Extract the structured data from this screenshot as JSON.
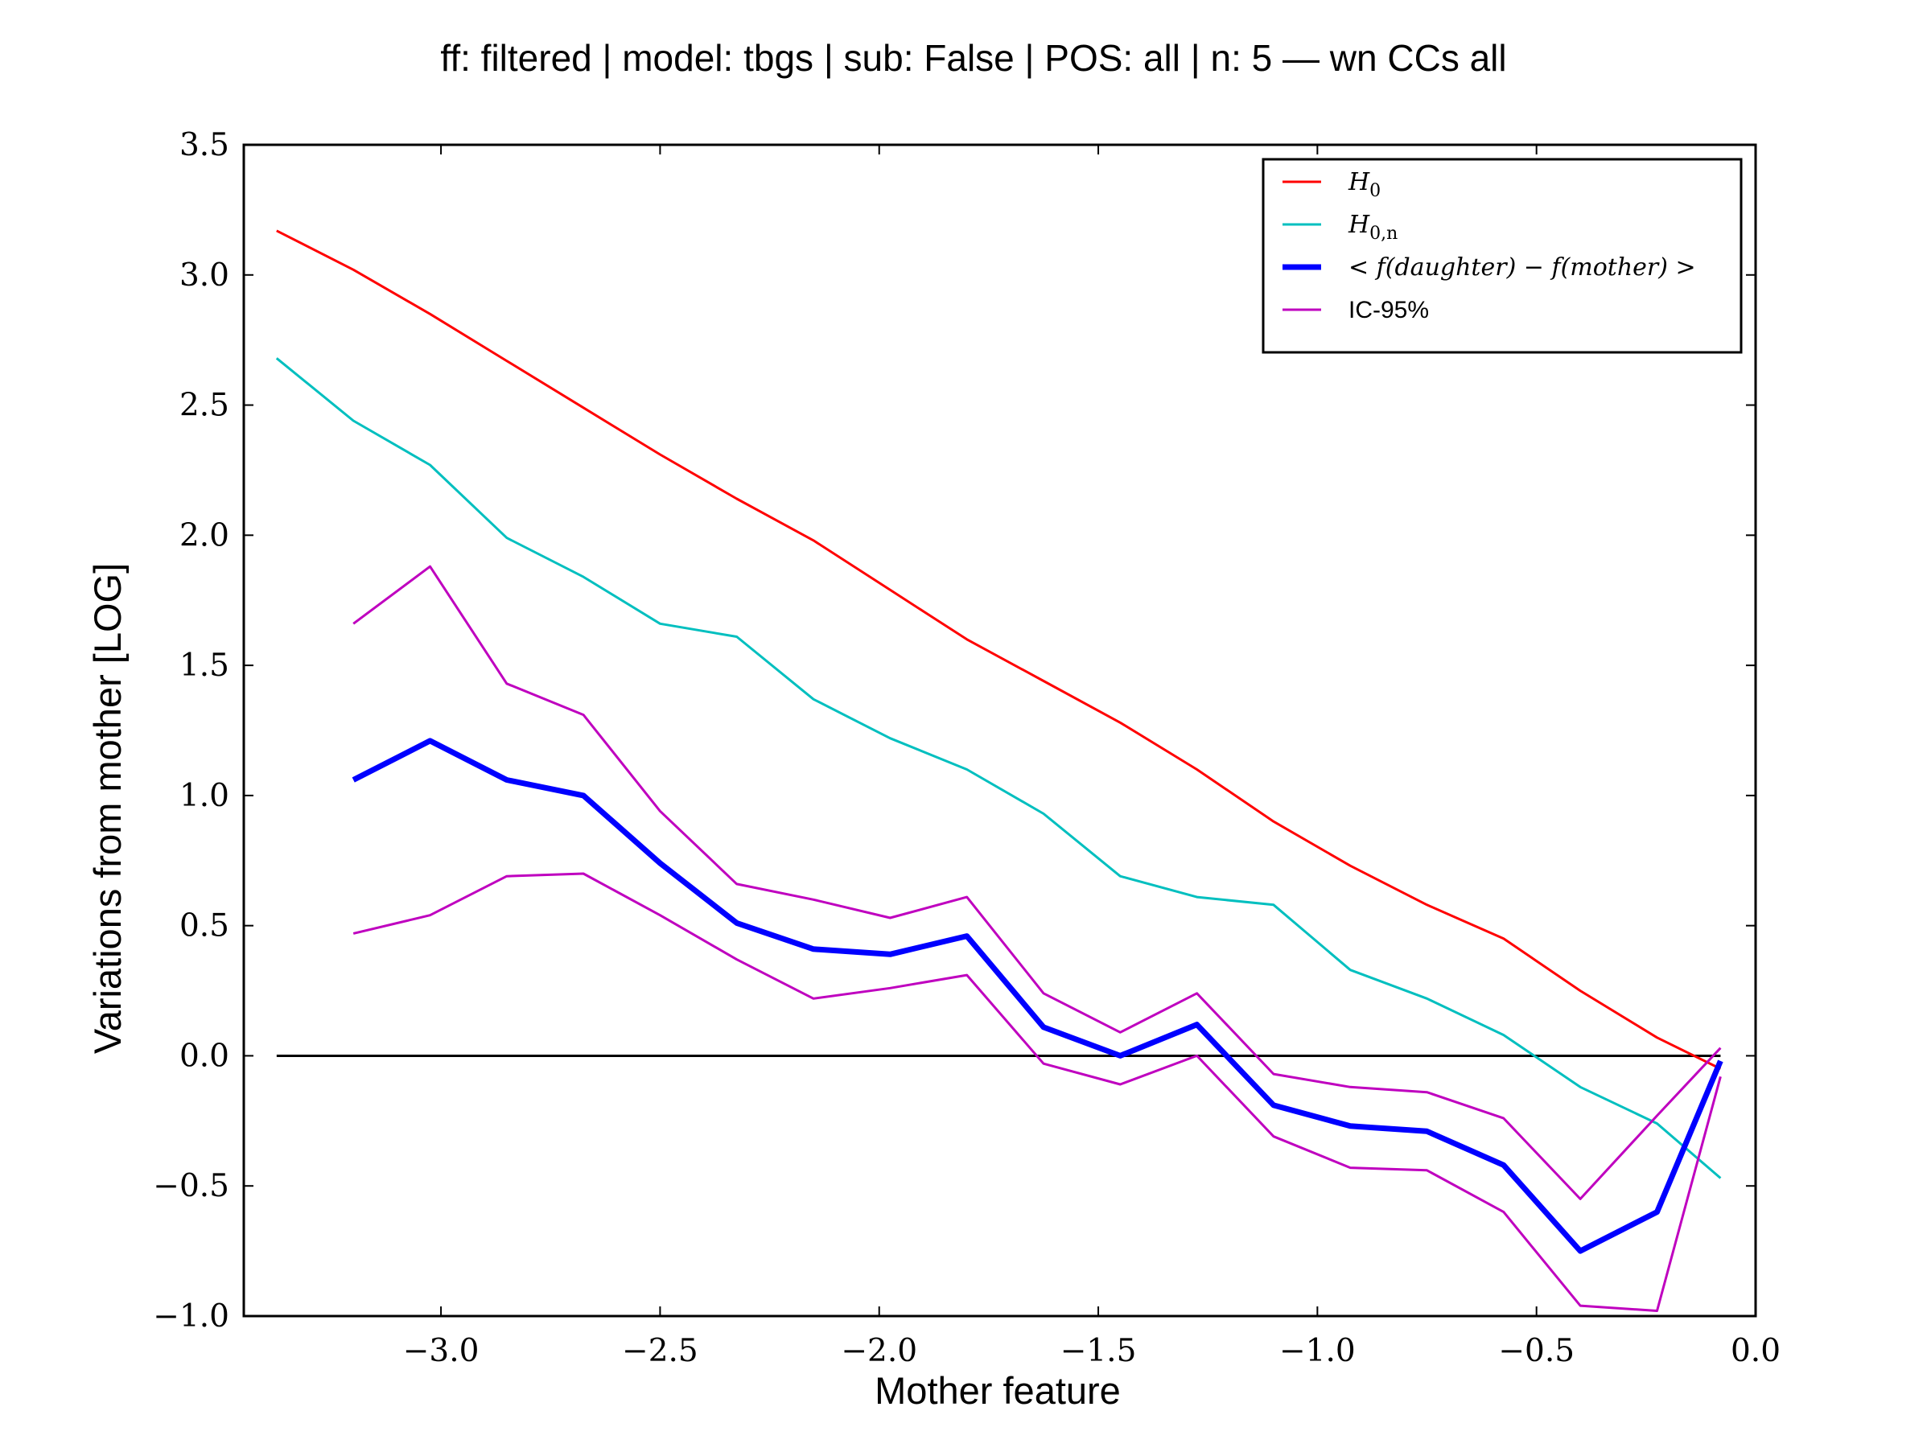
{
  "chart_data": {
    "type": "line",
    "title": "ff: filtered | model: tbgs | sub: False | POS: all | n: 5 — wn CCs all",
    "xlabel": "Mother feature",
    "ylabel": "Variations from mother [LOG]",
    "xlim": [
      -3.45,
      0.0
    ],
    "ylim": [
      -1.0,
      3.5
    ],
    "xticks": [
      -3.0,
      -2.5,
      -2.0,
      -1.5,
      -1.0,
      -0.5,
      0.0
    ],
    "xtick_labels": [
      "−3.0",
      "−2.5",
      "−2.0",
      "−1.5",
      "−1.0",
      "−0.5",
      "0.0"
    ],
    "yticks": [
      -1.0,
      -0.5,
      0.0,
      0.5,
      1.0,
      1.5,
      2.0,
      2.5,
      3.0,
      3.5
    ],
    "ytick_labels": [
      "−1.0",
      "−0.5",
      "0.0",
      "0.5",
      "1.0",
      "1.5",
      "2.0",
      "2.5",
      "3.0",
      "3.5"
    ],
    "grid": false,
    "legend_position": "top-right",
    "reference_line": {
      "y": 0.0,
      "x_from": -3.375,
      "x_to": -0.08,
      "color": "#000000"
    },
    "series": [
      {
        "name": "H_0",
        "legend_main": "H",
        "legend_sub": "0",
        "color": "#ff0000",
        "width": 3,
        "x": [
          -3.375,
          -3.2,
          -3.025,
          -2.85,
          -2.675,
          -2.5,
          -2.325,
          -2.15,
          -1.975,
          -1.8,
          -1.625,
          -1.45,
          -1.275,
          -1.1,
          -0.925,
          -0.75,
          -0.575,
          -0.4,
          -0.225,
          -0.08
        ],
        "y": [
          3.17,
          3.02,
          2.85,
          2.67,
          2.49,
          2.31,
          2.14,
          1.98,
          1.79,
          1.6,
          1.44,
          1.28,
          1.1,
          0.9,
          0.73,
          0.58,
          0.45,
          0.25,
          0.07,
          -0.05
        ]
      },
      {
        "name": "H_{0,n}",
        "legend_main": "H",
        "legend_sub": "0,n",
        "color": "#00bfbf",
        "width": 3,
        "x": [
          -3.375,
          -3.2,
          -3.025,
          -2.85,
          -2.675,
          -2.5,
          -2.325,
          -2.15,
          -1.975,
          -1.8,
          -1.625,
          -1.45,
          -1.275,
          -1.1,
          -0.925,
          -0.75,
          -0.575,
          -0.4,
          -0.225,
          -0.08
        ],
        "y": [
          2.68,
          2.44,
          2.27,
          1.99,
          1.84,
          1.66,
          1.61,
          1.37,
          1.22,
          1.1,
          0.93,
          0.69,
          0.61,
          0.58,
          0.33,
          0.22,
          0.08,
          -0.12,
          -0.26,
          -0.47
        ]
      },
      {
        "name": "< f(daughter) − f(mother) >",
        "legend_main": "< f(daughter) − f(mother) >",
        "legend_sub": "",
        "color": "#0000ff",
        "width": 7,
        "x": [
          -3.2,
          -3.025,
          -2.85,
          -2.675,
          -2.5,
          -2.325,
          -2.15,
          -1.975,
          -1.8,
          -1.625,
          -1.45,
          -1.275,
          -1.1,
          -0.925,
          -0.75,
          -0.575,
          -0.4,
          -0.225,
          -0.08
        ],
        "y": [
          1.06,
          1.21,
          1.06,
          1.0,
          0.74,
          0.51,
          0.41,
          0.39,
          0.46,
          0.11,
          0.0,
          0.12,
          -0.19,
          -0.27,
          -0.29,
          -0.42,
          -0.75,
          -0.6,
          -0.02
        ]
      },
      {
        "name": "IC-95%",
        "legend_main": "IC-95%",
        "legend_sub": "",
        "color": "#bf00bf",
        "width": 3,
        "x": [
          -3.2,
          -3.025,
          -2.85,
          -2.675,
          -2.5,
          -2.325,
          -2.15,
          -1.975,
          -1.8,
          -1.625,
          -1.45,
          -1.275,
          -1.1,
          -0.925,
          -0.75,
          -0.575,
          -0.4,
          -0.225,
          -0.08
        ],
        "y": [
          1.66,
          1.88,
          1.43,
          1.31,
          0.94,
          0.66,
          0.6,
          0.53,
          0.61,
          0.24,
          0.09,
          0.24,
          -0.07,
          -0.12,
          -0.14,
          -0.24,
          -0.55,
          -0.23,
          0.03
        ]
      },
      {
        "name": "",
        "legend_main": "",
        "legend_sub": "",
        "color": "#bf00bf",
        "width": 3,
        "x": [
          -3.2,
          -3.025,
          -2.85,
          -2.675,
          -2.5,
          -2.325,
          -2.15,
          -1.975,
          -1.8,
          -1.625,
          -1.45,
          -1.275,
          -1.1,
          -0.925,
          -0.75,
          -0.575,
          -0.4,
          -0.225,
          -0.08
        ],
        "y": [
          0.47,
          0.54,
          0.69,
          0.7,
          0.54,
          0.37,
          0.22,
          0.26,
          0.31,
          -0.03,
          -0.11,
          0.0,
          -0.31,
          -0.43,
          -0.44,
          -0.6,
          -0.96,
          -0.98,
          -0.08
        ]
      }
    ]
  }
}
